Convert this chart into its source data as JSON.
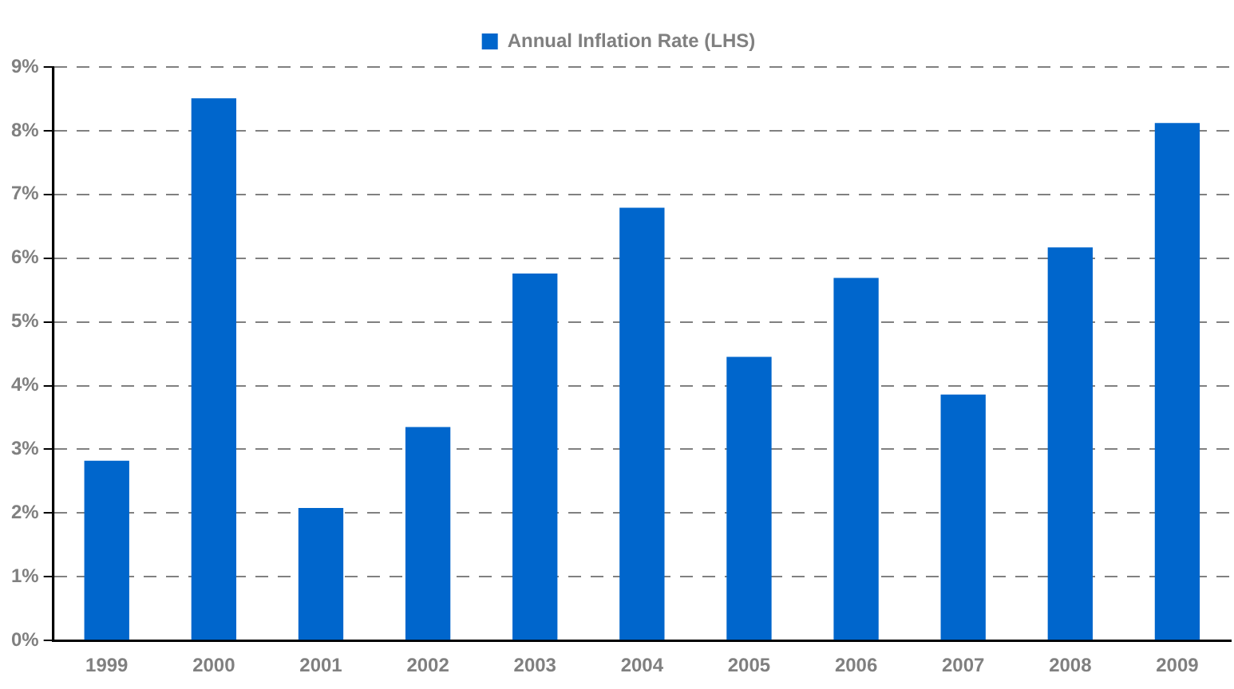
{
  "chart_data": {
    "type": "bar",
    "categories": [
      "1999",
      "2000",
      "2001",
      "2002",
      "2003",
      "2004",
      "2005",
      "2006",
      "2007",
      "2008",
      "2009"
    ],
    "series": [
      {
        "name": "Annual Inflation Rate (LHS)",
        "color": "#0066cc",
        "values": [
          2.82,
          8.51,
          2.08,
          3.35,
          5.76,
          6.79,
          4.45,
          5.69,
          3.86,
          6.17,
          8.12
        ]
      }
    ],
    "ylim": [
      0,
      9
    ],
    "yticks": [
      {
        "value": 0,
        "label": "0%"
      },
      {
        "value": 1,
        "label": "1%"
      },
      {
        "value": 2,
        "label": "2%"
      },
      {
        "value": 3,
        "label": "3%"
      },
      {
        "value": 4,
        "label": "4%"
      },
      {
        "value": 5,
        "label": "5%"
      },
      {
        "value": 6,
        "label": "6%"
      },
      {
        "value": 7,
        "label": "7%"
      },
      {
        "value": 8,
        "label": "8%"
      },
      {
        "value": 9,
        "label": "9%"
      }
    ],
    "grid": "y",
    "legend": "top"
  }
}
